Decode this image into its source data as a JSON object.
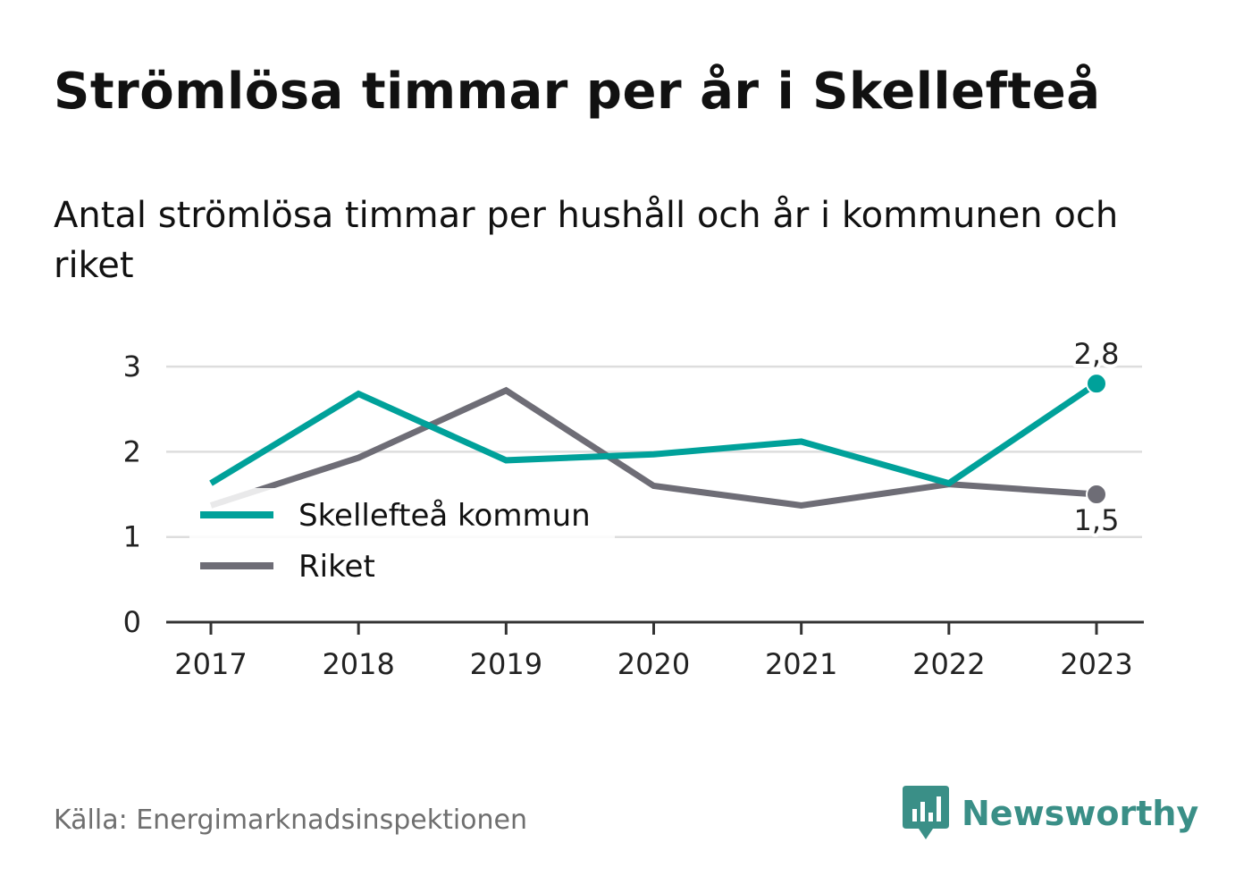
{
  "title": "Strömlösa timmar per år i Skellefteå",
  "subtitle": "Antal strömlösa timmar per hushåll och år i kommunen och riket",
  "source": "Källa: Energimarknadsinspektionen",
  "brand": {
    "name": "Newsworthy",
    "icon": "newsworthy-logo-icon"
  },
  "colors": {
    "kommun": "#00a19a",
    "riket": "#6e6d76",
    "grid": "#dddddd",
    "axis": "#333333",
    "brand": "#3a8f87"
  },
  "chart_data": {
    "type": "line",
    "categories": [
      "2017",
      "2018",
      "2019",
      "2020",
      "2021",
      "2022",
      "2023"
    ],
    "yticks": [
      "0",
      "1",
      "2",
      "3"
    ],
    "ylim": [
      0,
      3.2
    ],
    "grid": true,
    "legend_placement": "left",
    "series": [
      {
        "name": "Skellefteå kommun",
        "values": [
          1.63,
          2.68,
          1.9,
          1.97,
          2.12,
          1.63,
          2.8
        ],
        "color": "#00a19a",
        "end_label": "2,8"
      },
      {
        "name": "Riket",
        "values": [
          1.37,
          1.93,
          2.72,
          1.6,
          1.37,
          1.62,
          1.5
        ],
        "color": "#6e6d76",
        "end_label": "1,5"
      }
    ]
  }
}
